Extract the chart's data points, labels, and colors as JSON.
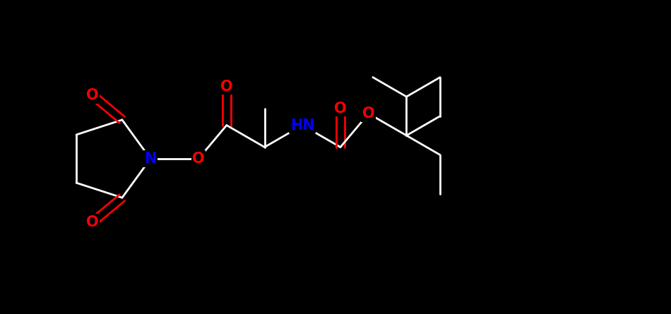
{
  "background_color": "#000000",
  "bond_color": "#ffffff",
  "atom_colors": {
    "O": "#ff0000",
    "N": "#0000ff",
    "C": "#ffffff",
    "H": "#ffffff"
  },
  "figsize": [
    9.5,
    4.45
  ],
  "dpi": 100,
  "lw": 2.0,
  "fs": 15
}
